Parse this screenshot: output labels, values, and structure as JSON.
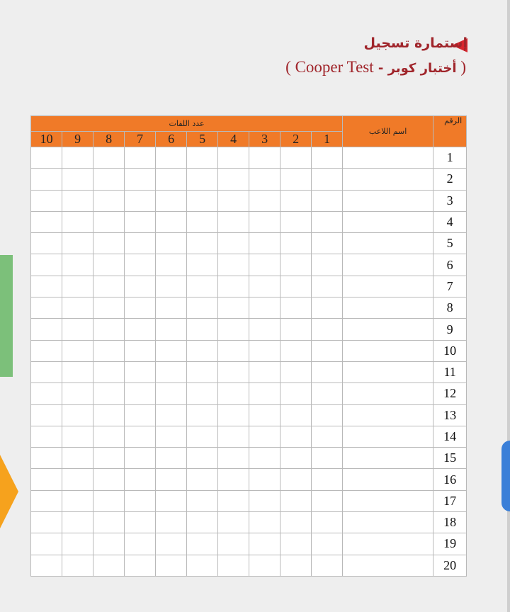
{
  "document": {
    "title": "إستمارة تسجيل",
    "subtitle_open": "( ",
    "subtitle_ar": "أختبار كوبر - ",
    "subtitle_en": "Cooper Test )",
    "accent_color": "#f07a28",
    "title_color": "#a0252b"
  },
  "table": {
    "headers": {
      "number": "الرقم",
      "player_name": "اسم اللاعب",
      "laps": "عدد اللفات"
    },
    "lap_columns": [
      "1",
      "2",
      "3",
      "4",
      "5",
      "6",
      "7",
      "8",
      "9",
      "10"
    ],
    "rows": [
      "1",
      "2",
      "3",
      "4",
      "5",
      "6",
      "7",
      "8",
      "9",
      "10",
      "11",
      "12",
      "13",
      "14",
      "15",
      "16",
      "17",
      "18",
      "19",
      "20"
    ]
  }
}
